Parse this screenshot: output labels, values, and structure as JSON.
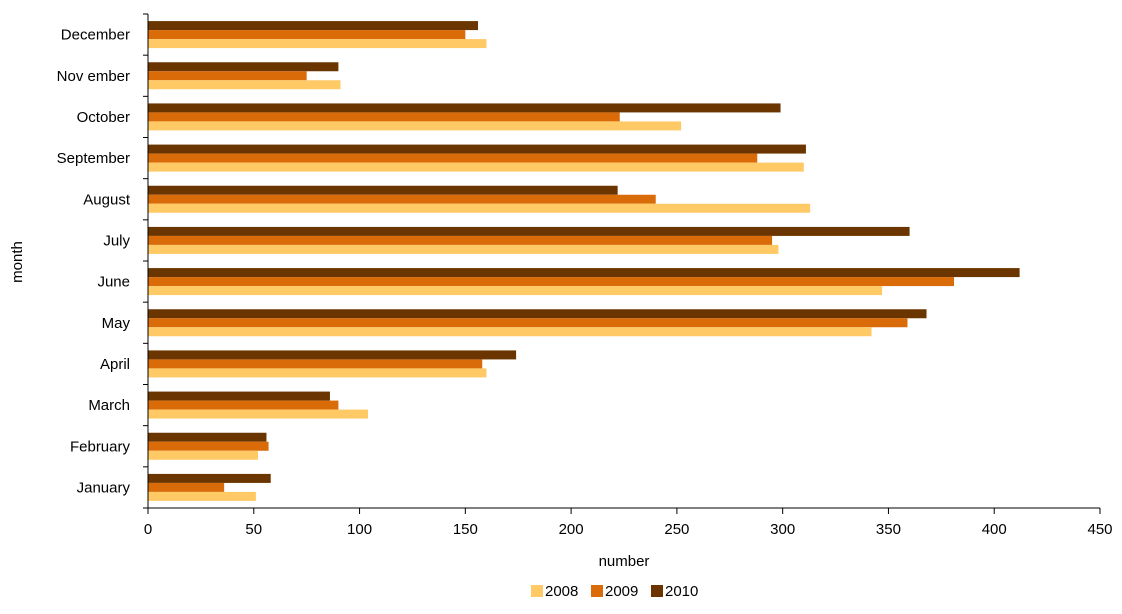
{
  "chart_data": {
    "type": "bar",
    "orientation": "horizontal",
    "title": "",
    "xlabel": "number",
    "ylabel": "month",
    "xlim": [
      0,
      450
    ],
    "x_ticks": [
      0,
      50,
      100,
      150,
      200,
      250,
      300,
      350,
      400,
      450
    ],
    "categories": [
      "January",
      "February",
      "March",
      "April",
      "May",
      "June",
      "July",
      "August",
      "September",
      "October",
      "Nov ember",
      "December"
    ],
    "series": [
      {
        "name": "2008",
        "color": "#FFC966",
        "values": [
          51,
          52,
          104,
          160,
          342,
          347,
          298,
          313,
          310,
          252,
          91,
          160
        ]
      },
      {
        "name": "2009",
        "color": "#D96B09",
        "values": [
          36,
          57,
          90,
          158,
          359,
          381,
          295,
          240,
          288,
          223,
          75,
          150
        ]
      },
      {
        "name": "2010",
        "color": "#6B3500",
        "values": [
          58,
          56,
          86,
          174,
          368,
          412,
          360,
          222,
          311,
          299,
          90,
          156
        ]
      }
    ],
    "grid": false,
    "legend_position": "bottom"
  }
}
